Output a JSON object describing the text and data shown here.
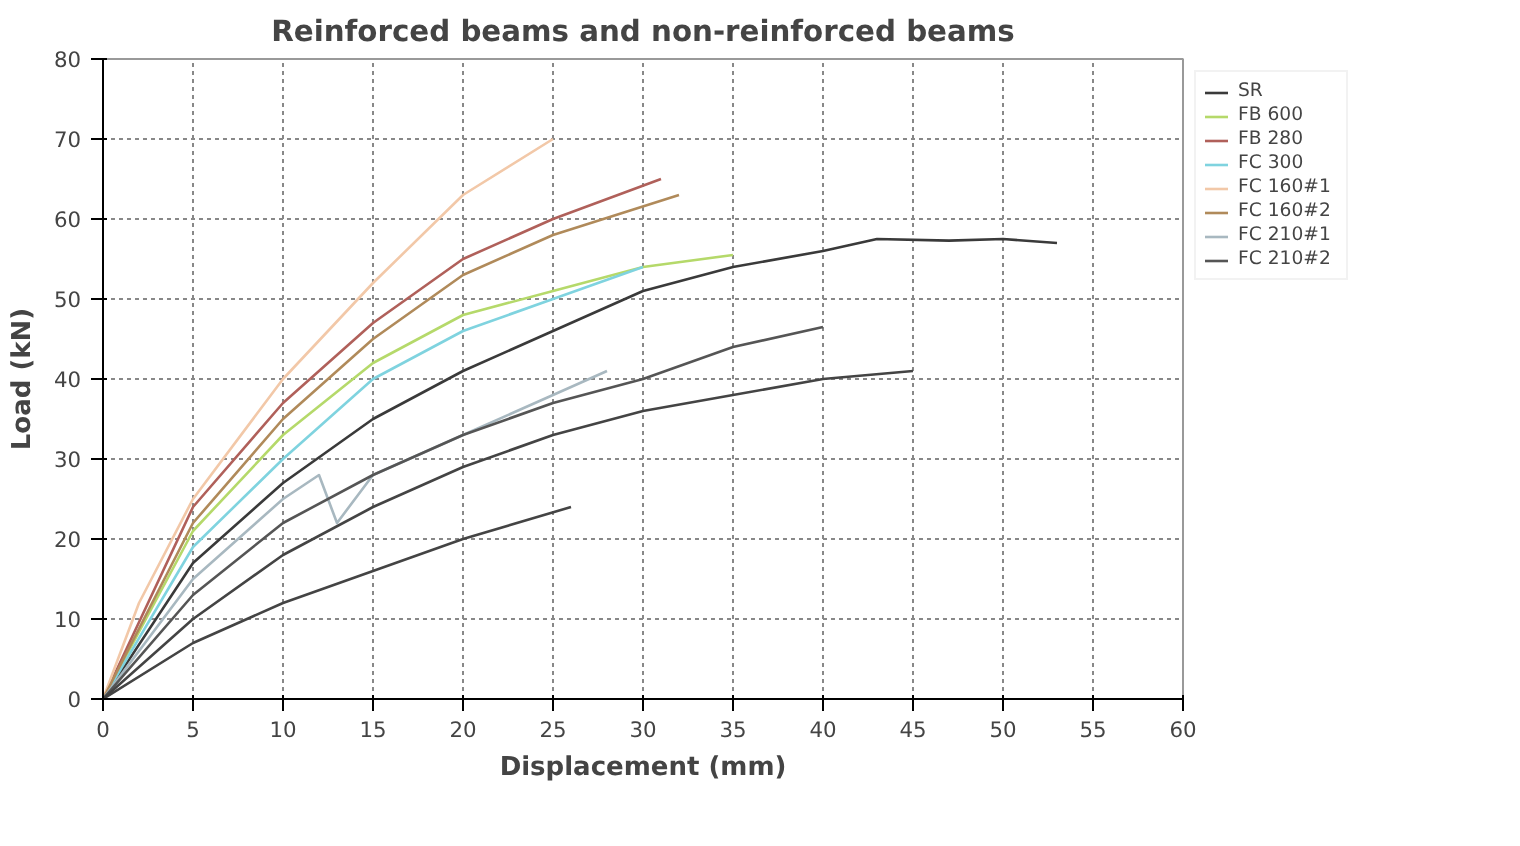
{
  "chart_data": {
    "type": "line",
    "title": "Reinforced beams and non-reinforced beams",
    "xlabel": "Displacement (mm)",
    "ylabel": "Load (kN)",
    "xlim": [
      0,
      60
    ],
    "ylim": [
      0,
      80
    ],
    "xticks": [
      0,
      5,
      10,
      15,
      20,
      25,
      30,
      35,
      40,
      45,
      50,
      55,
      60
    ],
    "yticks": [
      0,
      10,
      20,
      30,
      40,
      50,
      60,
      70,
      80
    ],
    "grid": true,
    "legend": "right",
    "marker": "none",
    "line_style": "solid",
    "series": [
      {
        "name": "SR",
        "color": "#3a3a3a",
        "x": [
          0,
          5,
          10,
          15,
          20,
          25,
          30,
          35,
          40,
          43,
          47,
          50,
          53
        ],
        "values": [
          0,
          17,
          27,
          35,
          41,
          46,
          51,
          54,
          56,
          57.5,
          57.3,
          57.5,
          57
        ]
      },
      {
        "name": "FB 600",
        "color": "#b5d96a",
        "x": [
          0,
          5,
          10,
          15,
          20,
          25,
          30,
          35
        ],
        "values": [
          0,
          21,
          33,
          42,
          48,
          51,
          54,
          55.5
        ]
      },
      {
        "name": "FB 280",
        "color": "#b0605a",
        "x": [
          0,
          5,
          10,
          15,
          20,
          25,
          31
        ],
        "values": [
          0,
          24,
          37,
          47,
          55,
          60,
          65
        ]
      },
      {
        "name": "FC 300",
        "color": "#7fd3df",
        "x": [
          0,
          5,
          10,
          13,
          15,
          20,
          25,
          30
        ],
        "values": [
          0,
          19,
          30,
          36,
          40,
          46,
          50,
          54
        ]
      },
      {
        "name": "FC 160#1",
        "color": "#f2c8a8",
        "x": [
          0,
          2,
          5,
          10,
          15,
          20,
          25
        ],
        "values": [
          0,
          12,
          25,
          40,
          52,
          63,
          70
        ]
      },
      {
        "name": "FC 160#2",
        "color": "#b08a5a",
        "x": [
          0,
          5,
          10,
          15,
          20,
          25,
          32
        ],
        "values": [
          0,
          22,
          35,
          45,
          53,
          58,
          63
        ]
      },
      {
        "name": "FC 210#1",
        "color": "#a8b8c0",
        "x": [
          0,
          5,
          10,
          12,
          13,
          15,
          20,
          25,
          28
        ],
        "values": [
          0,
          15,
          25,
          28,
          22,
          28,
          33,
          38,
          41
        ]
      },
      {
        "name": "FC 210#2",
        "color": "#555555",
        "x": [
          0,
          5,
          10,
          15,
          20,
          25,
          30,
          35,
          40
        ],
        "values": [
          0,
          13,
          22,
          28,
          33,
          37,
          40,
          44,
          46.5
        ]
      },
      {
        "color": "#444444",
        "x": [
          0,
          5,
          10,
          15,
          20,
          25,
          30,
          35,
          40,
          45
        ],
        "values": [
          0,
          10,
          18,
          24,
          29,
          33,
          36,
          38,
          40,
          41
        ]
      },
      {
        "color": "#444444",
        "x": [
          0,
          5,
          10,
          15,
          20,
          26
        ],
        "values": [
          0,
          7,
          12,
          16,
          20,
          24
        ]
      }
    ]
  }
}
